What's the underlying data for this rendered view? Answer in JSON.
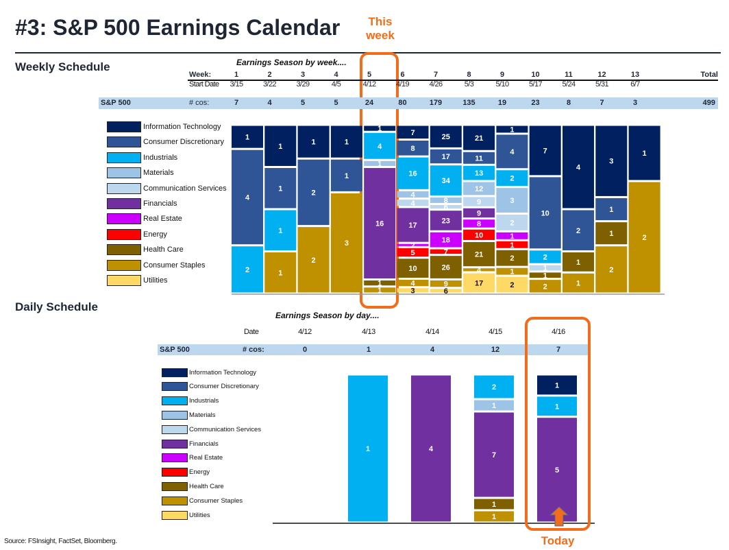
{
  "title": "#3: S&P 500 Earnings Calendar",
  "annotations": {
    "this_week": "This week",
    "today": "Today"
  },
  "colors": {
    "highlight": "#f26c1a",
    "band": "#bdd7ee"
  },
  "sectors": [
    {
      "name": "Information Technology",
      "color": "#002060",
      "text": "#ffffff"
    },
    {
      "name": "Consumer Discretionary",
      "color": "#2f5597",
      "text": "#ffffff"
    },
    {
      "name": "Industrials",
      "color": "#00b0f0",
      "text": "#ffffff"
    },
    {
      "name": "Materials",
      "color": "#9dc3e6",
      "text": "#ffffff"
    },
    {
      "name": "Communication Services",
      "color": "#bdd7ee",
      "text": "#ffffff"
    },
    {
      "name": "Financials",
      "color": "#7030a0",
      "text": "#ffffff"
    },
    {
      "name": "Real Estate",
      "color": "#cc00ff",
      "text": "#ffffff"
    },
    {
      "name": "Energy",
      "color": "#ff0000",
      "text": "#ffffff"
    },
    {
      "name": "Health Care",
      "color": "#7f6000",
      "text": "#ffffff"
    },
    {
      "name": "Consumer Staples",
      "color": "#bf9000",
      "text": "#ffffff"
    },
    {
      "name": "Utilities",
      "color": "#ffd966",
      "text": "#111111"
    }
  ],
  "weekly": {
    "section_title": "Weekly Schedule",
    "subtitle": "Earnings Season by week....",
    "week_label": "Week:",
    "start_label": "Start Date",
    "index_label": "S&P 500",
    "count_label": "# cos:",
    "total_label": "Total",
    "total_value": "499",
    "weeks": [
      "1",
      "2",
      "3",
      "4",
      "5",
      "6",
      "7",
      "8",
      "9",
      "10",
      "11",
      "12",
      "13"
    ],
    "start_dates": [
      "3/15",
      "3/22",
      "3/29",
      "4/5",
      "4/12",
      "4/19",
      "4/26",
      "5/3",
      "5/10",
      "5/17",
      "5/24",
      "5/31",
      "6/7"
    ],
    "counts": [
      "7",
      "4",
      "5",
      "5",
      "24",
      "80",
      "179",
      "135",
      "19",
      "23",
      "8",
      "7",
      "3"
    ]
  },
  "daily": {
    "section_title": "Daily Schedule",
    "subtitle": "Earnings Season by day....",
    "date_label": "Date",
    "index_label": "S&P 500",
    "count_label": "# cos:",
    "dates": [
      "4/12",
      "4/13",
      "4/14",
      "4/15",
      "4/16"
    ],
    "counts": [
      "0",
      "1",
      "4",
      "12",
      "7"
    ]
  },
  "source": "Source: FSInsight, FactSet, Bloomberg.",
  "chart_data": [
    {
      "type": "bar",
      "stacked": "100%",
      "title": "Earnings Season by week....",
      "xlabel": "Week",
      "ylabel": "",
      "categories": [
        "1",
        "2",
        "3",
        "4",
        "5",
        "6",
        "7",
        "8",
        "9",
        "10",
        "11",
        "12",
        "13"
      ],
      "series": [
        {
          "name": "Information Technology",
          "values": [
            1,
            1,
            1,
            1,
            1,
            7,
            25,
            21,
            1,
            7,
            4,
            3,
            1
          ]
        },
        {
          "name": "Consumer Discretionary",
          "values": [
            4,
            1,
            2,
            1,
            0,
            8,
            17,
            11,
            4,
            10,
            2,
            1,
            0
          ]
        },
        {
          "name": "Industrials",
          "values": [
            2,
            1,
            0,
            0,
            4,
            16,
            34,
            13,
            2,
            2,
            0,
            0,
            0
          ]
        },
        {
          "name": "Materials",
          "values": [
            0,
            0,
            0,
            0,
            1,
            4,
            8,
            12,
            3,
            0,
            0,
            0,
            0
          ]
        },
        {
          "name": "Communication Services",
          "values": [
            0,
            0,
            0,
            0,
            0,
            4,
            6,
            9,
            2,
            1,
            0,
            0,
            0
          ]
        },
        {
          "name": "Financials",
          "values": [
            0,
            0,
            0,
            0,
            16,
            17,
            23,
            9,
            0,
            0,
            0,
            0,
            0
          ]
        },
        {
          "name": "Real Estate",
          "values": [
            0,
            0,
            0,
            0,
            0,
            2,
            18,
            8,
            1,
            0,
            0,
            0,
            0
          ]
        },
        {
          "name": "Energy",
          "values": [
            0,
            0,
            0,
            0,
            0,
            5,
            7,
            10,
            1,
            0,
            0,
            0,
            0
          ]
        },
        {
          "name": "Health Care",
          "values": [
            0,
            0,
            0,
            0,
            1,
            10,
            26,
            21,
            2,
            1,
            1,
            1,
            0
          ]
        },
        {
          "name": "Consumer Staples",
          "values": [
            0,
            1,
            2,
            3,
            1,
            4,
            9,
            4,
            1,
            2,
            1,
            2,
            2
          ]
        },
        {
          "name": "Utilities",
          "values": [
            0,
            0,
            0,
            0,
            0,
            3,
            6,
            17,
            2,
            0,
            0,
            0,
            0
          ]
        }
      ],
      "totals": [
        7,
        4,
        5,
        5,
        24,
        80,
        179,
        135,
        19,
        23,
        8,
        7,
        3
      ],
      "highlight_category": "5",
      "legend": "left",
      "grid": false
    },
    {
      "type": "bar",
      "stacked": "100%",
      "title": "Earnings Season by day....",
      "xlabel": "Date",
      "ylabel": "",
      "categories": [
        "4/12",
        "4/13",
        "4/14",
        "4/15",
        "4/16"
      ],
      "series": [
        {
          "name": "Information Technology",
          "values": [
            0,
            0,
            0,
            0,
            1
          ]
        },
        {
          "name": "Consumer Discretionary",
          "values": [
            0,
            0,
            0,
            0,
            0
          ]
        },
        {
          "name": "Industrials",
          "values": [
            0,
            1,
            0,
            2,
            1
          ]
        },
        {
          "name": "Materials",
          "values": [
            0,
            0,
            0,
            1,
            0
          ]
        },
        {
          "name": "Communication Services",
          "values": [
            0,
            0,
            0,
            0,
            0
          ]
        },
        {
          "name": "Financials",
          "values": [
            0,
            0,
            4,
            7,
            5
          ]
        },
        {
          "name": "Real Estate",
          "values": [
            0,
            0,
            0,
            0,
            0
          ]
        },
        {
          "name": "Energy",
          "values": [
            0,
            0,
            0,
            0,
            0
          ]
        },
        {
          "name": "Health Care",
          "values": [
            0,
            0,
            0,
            1,
            0
          ]
        },
        {
          "name": "Consumer Staples",
          "values": [
            0,
            0,
            0,
            1,
            0
          ]
        },
        {
          "name": "Utilities",
          "values": [
            0,
            0,
            0,
            0,
            0
          ]
        }
      ],
      "totals": [
        0,
        1,
        4,
        12,
        7
      ],
      "highlight_category": "4/16",
      "legend": "left",
      "grid": false
    }
  ]
}
